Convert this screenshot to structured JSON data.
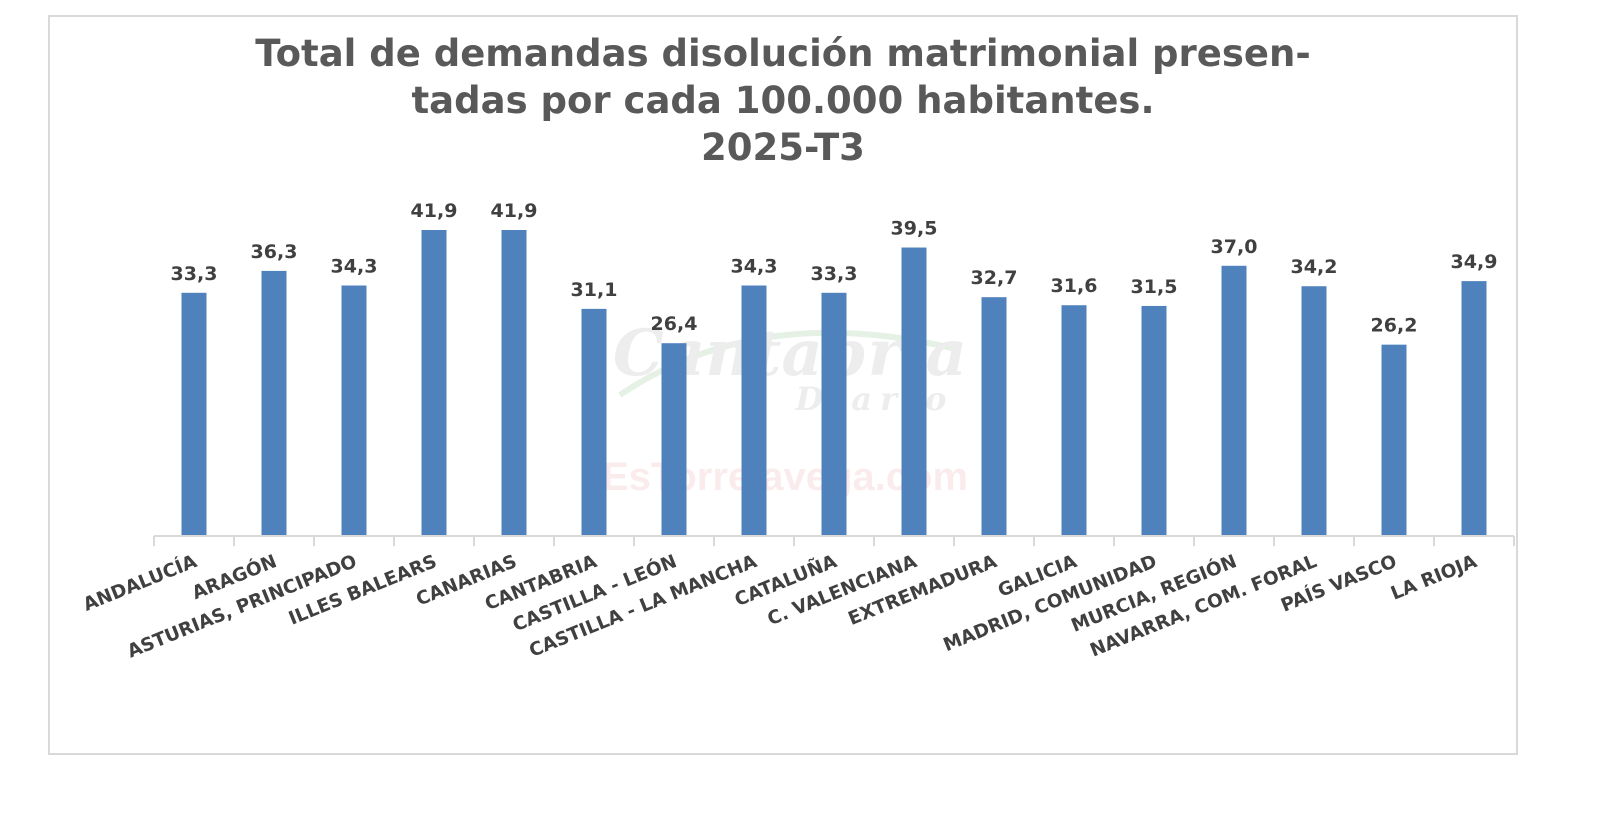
{
  "title": {
    "line1": "Total de demandas disolución matrimonial presen-",
    "line2": "tadas por cada 100.000 habitantes.",
    "line3": "2025-T3"
  },
  "watermark": {
    "logo_main": "Cantabria",
    "logo_sub": "Diario",
    "site": "EsTorrelavega.com"
  },
  "colors": {
    "bar": "#4f81bd",
    "title": "#595959",
    "label": "#404040",
    "axis": "#d9d9d9"
  },
  "chart_data": {
    "type": "bar",
    "title": "Total de demandas disolución matrimonial presentadas por cada 100.000 habitantes. 2025-T3",
    "xlabel": "",
    "ylabel": "",
    "grid": false,
    "legend": "none",
    "categories": [
      "ANDALUCÍA",
      "ARAGÓN",
      "ASTURIAS, PRINCIPADO",
      "ILLES BALEARS",
      "CANARIAS",
      "CANTABRIA",
      "CASTILLA - LEÓN",
      "CASTILLA - LA MANCHA",
      "CATALUÑA",
      "C. VALENCIANA",
      "EXTREMADURA",
      "GALICIA",
      "MADRID, COMUNIDAD",
      "MURCIA, REGIÓN",
      "NAVARRA, COM. FORAL",
      "PAÍS VASCO",
      "LA RIOJA"
    ],
    "values": [
      33.3,
      36.3,
      34.3,
      41.9,
      41.9,
      31.1,
      26.4,
      34.3,
      33.3,
      39.5,
      32.7,
      31.6,
      31.5,
      37.0,
      34.2,
      26.2,
      34.9
    ],
    "value_labels": [
      "33,3",
      "36,3",
      "34,3",
      "41,9",
      "41,9",
      "31,1",
      "26,4",
      "34,3",
      "33,3",
      "39,5",
      "32,7",
      "31,6",
      "31,5",
      "37,0",
      "34,2",
      "26,2",
      "34,9"
    ],
    "ylim": [
      0,
      41.9
    ]
  }
}
